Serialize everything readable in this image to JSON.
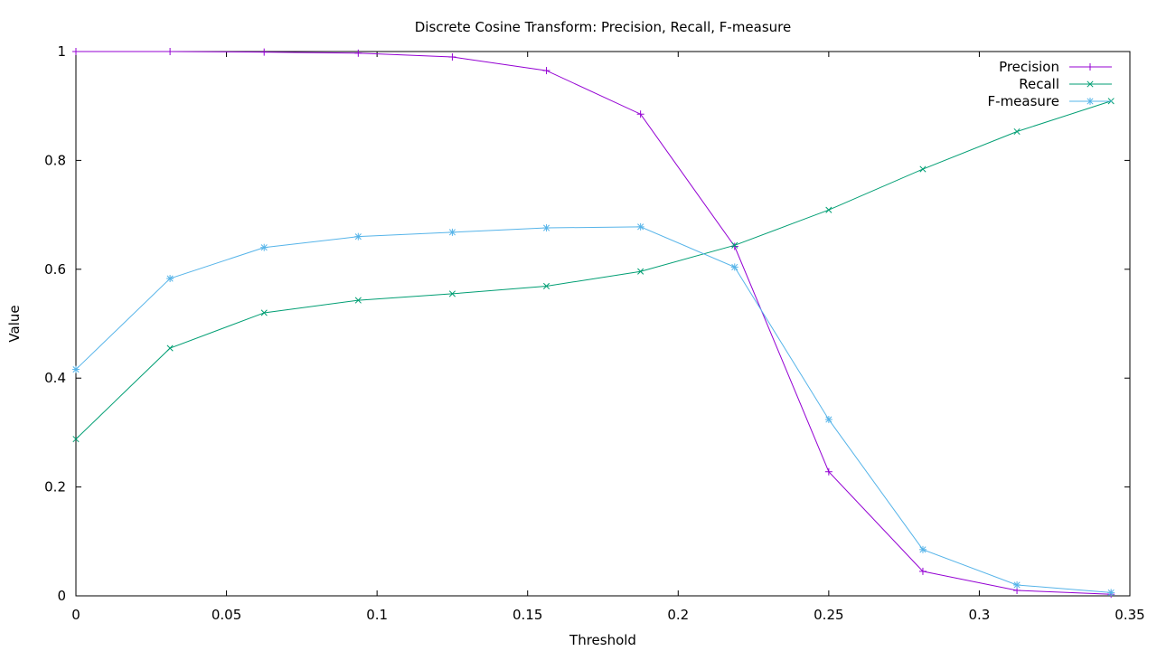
{
  "chart_data": {
    "type": "line",
    "title": "Discrete Cosine Transform: Precision, Recall, F-measure",
    "xlabel": "Threshold",
    "ylabel": "Value",
    "xlim": [
      0,
      0.35
    ],
    "ylim": [
      0,
      1
    ],
    "x_ticks": [
      0,
      0.05,
      0.1,
      0.15,
      0.2,
      0.25,
      0.3,
      0.35
    ],
    "x_tick_labels": [
      "0",
      "0.05",
      "0.1",
      "0.15",
      "0.2",
      "0.25",
      "0.3",
      "0.35"
    ],
    "y_ticks": [
      0,
      0.2,
      0.4,
      0.6,
      0.8,
      1
    ],
    "y_tick_labels": [
      "0",
      "0.2",
      "0.4",
      "0.6",
      "0.8",
      "1"
    ],
    "grid": false,
    "legend_position": "top-right",
    "x": [
      0,
      0.03125,
      0.0625,
      0.09375,
      0.125,
      0.15625,
      0.1875,
      0.21875,
      0.25,
      0.28125,
      0.3125,
      0.34375
    ],
    "series": [
      {
        "name": "Precision",
        "color": "#9400d3",
        "marker": "plus",
        "values": [
          1.0,
          1.0,
          0.999,
          0.997,
          0.99,
          0.965,
          0.885,
          0.642,
          0.228,
          0.045,
          0.01,
          0.003
        ]
      },
      {
        "name": "Recall",
        "color": "#009e73",
        "marker": "cross",
        "values": [
          0.288,
          0.455,
          0.52,
          0.543,
          0.555,
          0.569,
          0.596,
          0.644,
          0.709,
          0.784,
          0.853,
          0.909
        ]
      },
      {
        "name": "F-measure",
        "color": "#56b4e9",
        "marker": "star",
        "values": [
          0.416,
          0.583,
          0.64,
          0.66,
          0.668,
          0.676,
          0.678,
          0.604,
          0.324,
          0.085,
          0.02,
          0.006
        ]
      }
    ]
  }
}
